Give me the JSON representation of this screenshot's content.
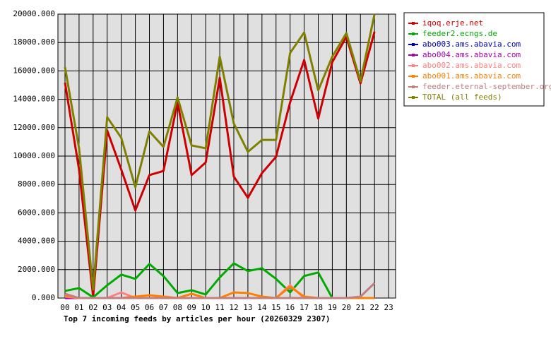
{
  "chart_data": {
    "type": "line",
    "title": "Top 7 incoming feeds by articles per hour (20260329 2307)",
    "categories": [
      "00",
      "01",
      "02",
      "03",
      "04",
      "05",
      "06",
      "07",
      "08",
      "09",
      "10",
      "11",
      "12",
      "13",
      "14",
      "15",
      "16",
      "17",
      "18",
      "19",
      "20",
      "21",
      "22",
      "23"
    ],
    "series": [
      {
        "name": "iqoq.erje.net",
        "color": "#cc0000",
        "values": [
          15170,
          9050,
          100,
          11800,
          9050,
          6170,
          8660,
          8950,
          13780,
          8660,
          9550,
          15520,
          8560,
          7060,
          8800,
          9950,
          13780,
          16770,
          12640,
          16620,
          18400,
          15120,
          18760,
          null
        ]
      },
      {
        "name": "feeder2.ecngs.de",
        "color": "#00aa00",
        "values": [
          500,
          700,
          50,
          900,
          1650,
          1350,
          2400,
          1550,
          350,
          550,
          250,
          1450,
          2450,
          1900,
          2100,
          1350,
          400,
          1550,
          1800,
          0,
          0,
          0,
          0,
          null
        ]
      },
      {
        "name": "abo003.ams.abavia.com",
        "color": "#0000aa",
        "values": [
          0,
          0,
          0,
          0,
          0,
          0,
          0,
          0,
          0,
          0,
          0,
          0,
          0,
          0,
          0,
          0,
          0,
          0,
          0,
          0,
          0,
          0,
          0,
          null
        ]
      },
      {
        "name": "abo004.ams.abavia.com",
        "color": "#aa00aa",
        "values": [
          0,
          0,
          0,
          0,
          0,
          0,
          0,
          0,
          0,
          0,
          0,
          0,
          0,
          0,
          0,
          0,
          0,
          0,
          0,
          0,
          0,
          0,
          0,
          null
        ]
      },
      {
        "name": "abo002.ams.abavia.com",
        "color": "#ff8080",
        "values": [
          100,
          0,
          0,
          0,
          400,
          0,
          0,
          0,
          0,
          0,
          0,
          0,
          0,
          0,
          0,
          0,
          900,
          0,
          0,
          0,
          0,
          0,
          0,
          null
        ]
      },
      {
        "name": "abo001.ams.abavia.com",
        "color": "#ff8000",
        "values": [
          200,
          0,
          0,
          0,
          0,
          100,
          200,
          100,
          0,
          300,
          0,
          0,
          400,
          350,
          100,
          0,
          800,
          100,
          0,
          0,
          0,
          0,
          0,
          null
        ]
      },
      {
        "name": "feeder.eternal-september.org",
        "color": "#c08080",
        "values": [
          300,
          0,
          0,
          0,
          0,
          0,
          0,
          0,
          0,
          0,
          0,
          0,
          0,
          0,
          0,
          0,
          0,
          0,
          0,
          0,
          0,
          100,
          1050,
          null
        ]
      },
      {
        "name": "TOTAL (all feeds)",
        "color": "#808000",
        "values": [
          16270,
          10550,
          600,
          12740,
          11290,
          7810,
          11740,
          10650,
          14130,
          10750,
          10550,
          17010,
          12290,
          10300,
          11140,
          11140,
          17260,
          18710,
          14630,
          17010,
          18660,
          15270,
          20000,
          null
        ]
      }
    ],
    "ylim": [
      0,
      20000
    ],
    "yticks": [
      {
        "value": 0,
        "label": "0.000"
      },
      {
        "value": 2000,
        "label": "2000.000"
      },
      {
        "value": 4000,
        "label": "4000.000"
      },
      {
        "value": 6000,
        "label": "6000.000"
      },
      {
        "value": 8000,
        "label": "8000.000"
      },
      {
        "value": 10000,
        "label": "10000.000"
      },
      {
        "value": 12000,
        "label": "12000.000"
      },
      {
        "value": 14000,
        "label": "14000.000"
      },
      {
        "value": 16000,
        "label": "16000.000"
      },
      {
        "value": 18000,
        "label": "18000.000"
      },
      {
        "value": 20000,
        "label": "20000.000"
      }
    ],
    "grid": true,
    "legend": "right"
  }
}
